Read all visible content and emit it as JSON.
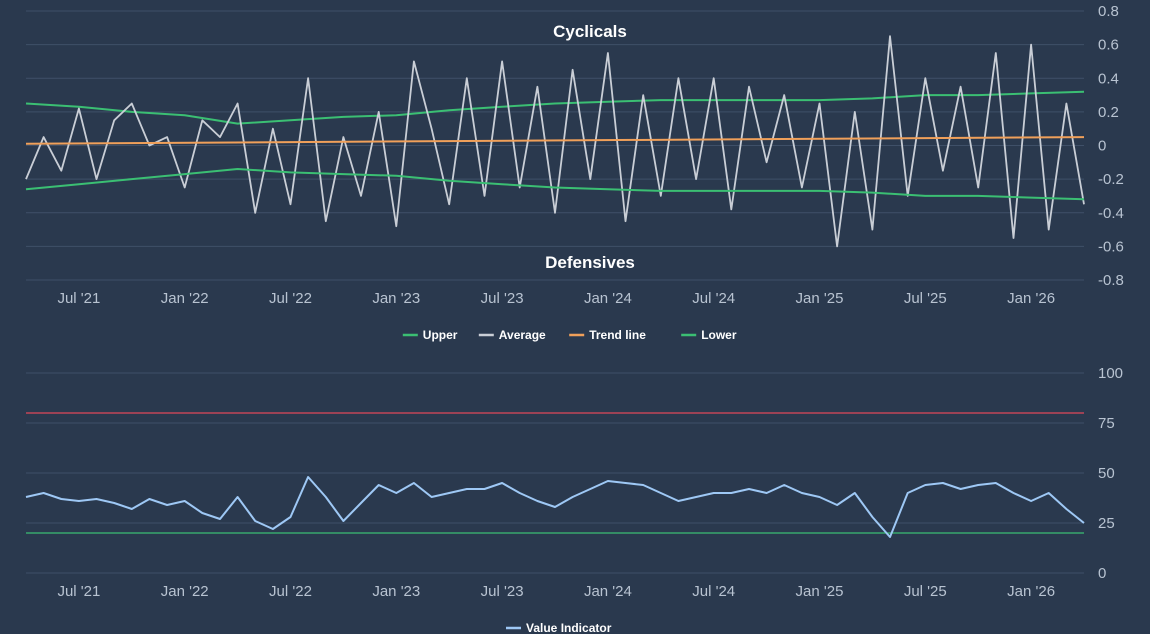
{
  "colors": {
    "background": "#2a394e",
    "grid": "#3f5068",
    "upper": "#3bbf73",
    "lower": "#3bbf73",
    "average": "#c9ced6",
    "trend": "#f0a05a",
    "value_indicator": "#9ec8f5",
    "threshold_high": "#e0485a",
    "threshold_low": "#3bbf73"
  },
  "x_ticks": [
    "Jul '21",
    "Jan '22",
    "Jul '22",
    "Jan '23",
    "Jul '23",
    "Jan '24",
    "Jul '24",
    "Jan '25",
    "Jul '25",
    "Jan '26"
  ],
  "top_y_ticks": [
    "0.8",
    "0.6",
    "0.4",
    "0.2",
    "0",
    "-0.2",
    "-0.4",
    "-0.6",
    "-0.8"
  ],
  "bottom_y_ticks": [
    "100",
    "75",
    "50",
    "25",
    "0"
  ],
  "chart_data": [
    {
      "type": "line",
      "annotations": {
        "top": "Cyclicals",
        "bottom": "Defensives"
      },
      "ylim": [
        -0.8,
        0.8
      ],
      "grid": true,
      "legend_position": "bottom-center",
      "x_range": [
        "2021-04",
        "2026-04"
      ],
      "series": [
        {
          "name": "Upper",
          "key": "upper",
          "dates": [
            "2021-04",
            "2021-07",
            "2021-10",
            "2022-01",
            "2022-04",
            "2022-07",
            "2022-10",
            "2023-01",
            "2023-04",
            "2023-07",
            "2023-10",
            "2024-01",
            "2024-04",
            "2024-07",
            "2024-10",
            "2025-01",
            "2025-04",
            "2025-07",
            "2025-10",
            "2026-01",
            "2026-04"
          ],
          "values": [
            0.25,
            0.23,
            0.2,
            0.18,
            0.13,
            0.15,
            0.17,
            0.18,
            0.21,
            0.23,
            0.25,
            0.26,
            0.27,
            0.27,
            0.27,
            0.27,
            0.28,
            0.3,
            0.3,
            0.31,
            0.32
          ]
        },
        {
          "name": "Average",
          "key": "average",
          "dates": [
            "2021-04",
            "2021-05",
            "2021-06",
            "2021-07",
            "2021-08",
            "2021-09",
            "2021-10",
            "2021-11",
            "2021-12",
            "2022-01",
            "2022-02",
            "2022-03",
            "2022-04",
            "2022-05",
            "2022-06",
            "2022-07",
            "2022-08",
            "2022-09",
            "2022-10",
            "2022-11",
            "2022-12",
            "2023-01",
            "2023-02",
            "2023-03",
            "2023-04",
            "2023-05",
            "2023-06",
            "2023-07",
            "2023-08",
            "2023-09",
            "2023-10",
            "2023-11",
            "2023-12",
            "2024-01",
            "2024-02",
            "2024-03",
            "2024-04",
            "2024-05",
            "2024-06",
            "2024-07",
            "2024-08",
            "2024-09",
            "2024-10",
            "2024-11",
            "2024-12",
            "2025-01",
            "2025-02",
            "2025-03",
            "2025-04",
            "2025-05",
            "2025-06",
            "2025-07",
            "2025-08",
            "2025-09",
            "2025-10",
            "2025-11",
            "2025-12",
            "2026-01",
            "2026-02",
            "2026-03",
            "2026-04"
          ],
          "values": [
            -0.2,
            0.05,
            -0.15,
            0.22,
            -0.2,
            0.15,
            0.25,
            0.0,
            0.05,
            -0.25,
            0.15,
            0.05,
            0.25,
            -0.4,
            0.1,
            -0.35,
            0.4,
            -0.45,
            0.05,
            -0.3,
            0.2,
            -0.48,
            0.5,
            0.1,
            -0.35,
            0.4,
            -0.3,
            0.5,
            -0.25,
            0.35,
            -0.4,
            0.45,
            -0.2,
            0.55,
            -0.45,
            0.3,
            -0.3,
            0.4,
            -0.2,
            0.4,
            -0.38,
            0.35,
            -0.1,
            0.3,
            -0.25,
            0.25,
            -0.6,
            0.2,
            -0.5,
            0.65,
            -0.3,
            0.4,
            -0.15,
            0.35,
            -0.25,
            0.55,
            -0.55,
            0.6,
            -0.5,
            0.25,
            -0.35
          ]
        },
        {
          "name": "Trend line",
          "key": "trend",
          "dates": [
            "2021-04",
            "2026-04"
          ],
          "values": [
            0.01,
            0.05
          ]
        },
        {
          "name": "Lower",
          "key": "lower",
          "dates": [
            "2021-04",
            "2021-07",
            "2021-10",
            "2022-01",
            "2022-04",
            "2022-07",
            "2022-10",
            "2023-01",
            "2023-04",
            "2023-07",
            "2023-10",
            "2024-01",
            "2024-04",
            "2024-07",
            "2024-10",
            "2025-01",
            "2025-04",
            "2025-07",
            "2025-10",
            "2026-01",
            "2026-04"
          ],
          "values": [
            -0.26,
            -0.23,
            -0.2,
            -0.17,
            -0.14,
            -0.16,
            -0.17,
            -0.18,
            -0.21,
            -0.23,
            -0.25,
            -0.26,
            -0.27,
            -0.27,
            -0.27,
            -0.27,
            -0.28,
            -0.3,
            -0.3,
            -0.31,
            -0.32
          ]
        }
      ]
    },
    {
      "type": "line",
      "ylim": [
        0,
        100
      ],
      "grid": true,
      "legend_position": "bottom-center",
      "x_range": [
        "2021-04",
        "2026-04"
      ],
      "reference_lines": [
        {
          "value": 80,
          "color_key": "threshold_high"
        },
        {
          "value": 20,
          "color_key": "threshold_low"
        }
      ],
      "series": [
        {
          "name": "Value Indicator",
          "key": "value_indicator",
          "dates": [
            "2021-04",
            "2021-05",
            "2021-06",
            "2021-07",
            "2021-08",
            "2021-09",
            "2021-10",
            "2021-11",
            "2021-12",
            "2022-01",
            "2022-02",
            "2022-03",
            "2022-04",
            "2022-05",
            "2022-06",
            "2022-07",
            "2022-08",
            "2022-09",
            "2022-10",
            "2022-11",
            "2022-12",
            "2023-01",
            "2023-02",
            "2023-03",
            "2023-04",
            "2023-05",
            "2023-06",
            "2023-07",
            "2023-08",
            "2023-09",
            "2023-10",
            "2023-11",
            "2023-12",
            "2024-01",
            "2024-02",
            "2024-03",
            "2024-04",
            "2024-05",
            "2024-06",
            "2024-07",
            "2024-08",
            "2024-09",
            "2024-10",
            "2024-11",
            "2024-12",
            "2025-01",
            "2025-02",
            "2025-03",
            "2025-04",
            "2025-05",
            "2025-06",
            "2025-07",
            "2025-08",
            "2025-09",
            "2025-10",
            "2025-11",
            "2025-12",
            "2026-01",
            "2026-02",
            "2026-03",
            "2026-04"
          ],
          "values": [
            38,
            40,
            37,
            36,
            37,
            35,
            32,
            37,
            34,
            36,
            30,
            27,
            38,
            26,
            22,
            28,
            48,
            38,
            26,
            35,
            44,
            40,
            45,
            38,
            40,
            42,
            42,
            45,
            40,
            36,
            33,
            38,
            42,
            46,
            45,
            44,
            40,
            36,
            38,
            40,
            40,
            42,
            40,
            44,
            40,
            38,
            34,
            40,
            28,
            18,
            40,
            44,
            45,
            42,
            44,
            45,
            40,
            36,
            40,
            32,
            25
          ]
        }
      ]
    }
  ]
}
